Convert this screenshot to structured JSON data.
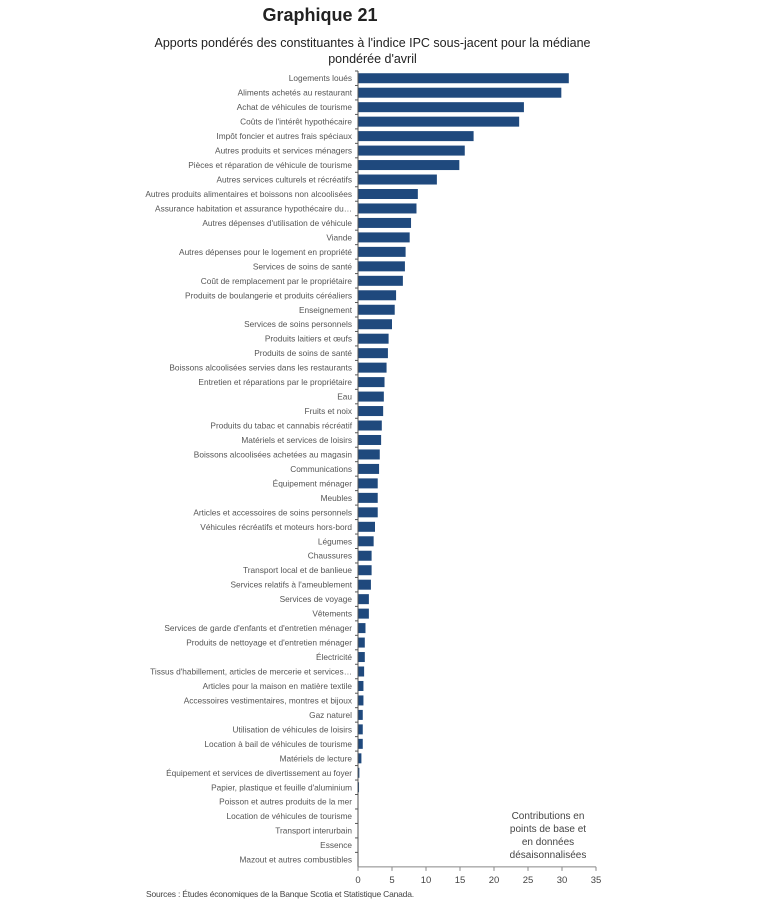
{
  "chart_data": {
    "type": "bar",
    "orientation": "horizontal",
    "title": "Graphique 21",
    "subtitle": "Apports pondérés des constituantes à l'indice IPC sous-jacent pour la médiane pondérée d'avril",
    "xlim": [
      0,
      35
    ],
    "xticks": [
      "0",
      "5",
      "10",
      "15",
      "20",
      "25",
      "30",
      "35"
    ],
    "annotation": "Contributions en points de base et en données désaisonnalisées",
    "source": "Sources : Études économiques de la Banque Scotia et Statistique Canada.",
    "color": "#1f497d",
    "categories": [
      "Logements loués",
      "Aliments achetés au restaurant",
      "Achat de véhicules de tourisme",
      "Coûts de l'intérêt hypothécaire",
      "Impôt foncier et autres frais spéciaux",
      "Autres produits et services ménagers",
      "Pièces et réparation de véhicule de tourisme",
      "Autres services culturels et récréatifs",
      "Autres produits alimentaires et boissons non alcoolisées",
      "Assurance habitation et assurance hypothécaire du…",
      "Autres dépenses d'utilisation de véhicule",
      "Viande",
      "Autres dépenses pour le logement en propriété",
      "Services de soins de santé",
      "Coût de remplacement par le propriétaire",
      "Produits de boulangerie et produits céréaliers",
      "Enseignement",
      "Services de soins personnels",
      "Produits laitiers et œufs",
      "Produits de soins de santé",
      "Boissons alcoolisées servies dans les restaurants",
      "Entretien et réparations par le propriétaire",
      "Eau",
      "Fruits et noix",
      "Produits du tabac et cannabis récréatif",
      "Matériels et services de loisirs",
      "Boissons alcoolisées achetées au magasin",
      "Communications",
      "Équipement ménager",
      "Meubles",
      "Articles et accessoires de soins personnels",
      "Véhicules récréatifs et moteurs hors-bord",
      "Légumes",
      "Chaussures",
      "Transport local et de banlieue",
      "Services relatifs à l'ameublement",
      "Services de voyage",
      "Vêtements",
      "Services de garde d'enfants et d'entretien ménager",
      "Produits de nettoyage et d'entretien ménager",
      "Électricité",
      "Tissus d'habillement, articles de mercerie et services…",
      "Articles pour la maison en matière textile",
      "Accessoires vestimentaires, montres et bijoux",
      "Gaz naturel",
      "Utilisation de véhicules de loisirs",
      "Location à bail de véhicules de tourisme",
      "Matériels de lecture",
      "Équipement et services de divertissement au foyer",
      "Papier, plastique et feuille d'aluminium",
      "Poisson et autres produits de la mer",
      "Location de véhicules de tourisme",
      "Transport interurbain",
      "Essence",
      "Mazout et autres combustibles"
    ],
    "values": [
      31.0,
      29.9,
      24.4,
      23.7,
      17.0,
      15.7,
      14.9,
      11.6,
      8.8,
      8.6,
      7.8,
      7.6,
      7.0,
      6.9,
      6.6,
      5.6,
      5.4,
      5.0,
      4.5,
      4.4,
      4.2,
      3.9,
      3.8,
      3.7,
      3.5,
      3.4,
      3.2,
      3.1,
      2.9,
      2.9,
      2.9,
      2.5,
      2.3,
      2.0,
      2.0,
      1.9,
      1.6,
      1.6,
      1.1,
      1.0,
      1.0,
      0.9,
      0.8,
      0.8,
      0.7,
      0.7,
      0.7,
      0.5,
      0.2,
      0.15,
      0.05,
      0.05,
      0.05,
      0,
      0
    ]
  }
}
